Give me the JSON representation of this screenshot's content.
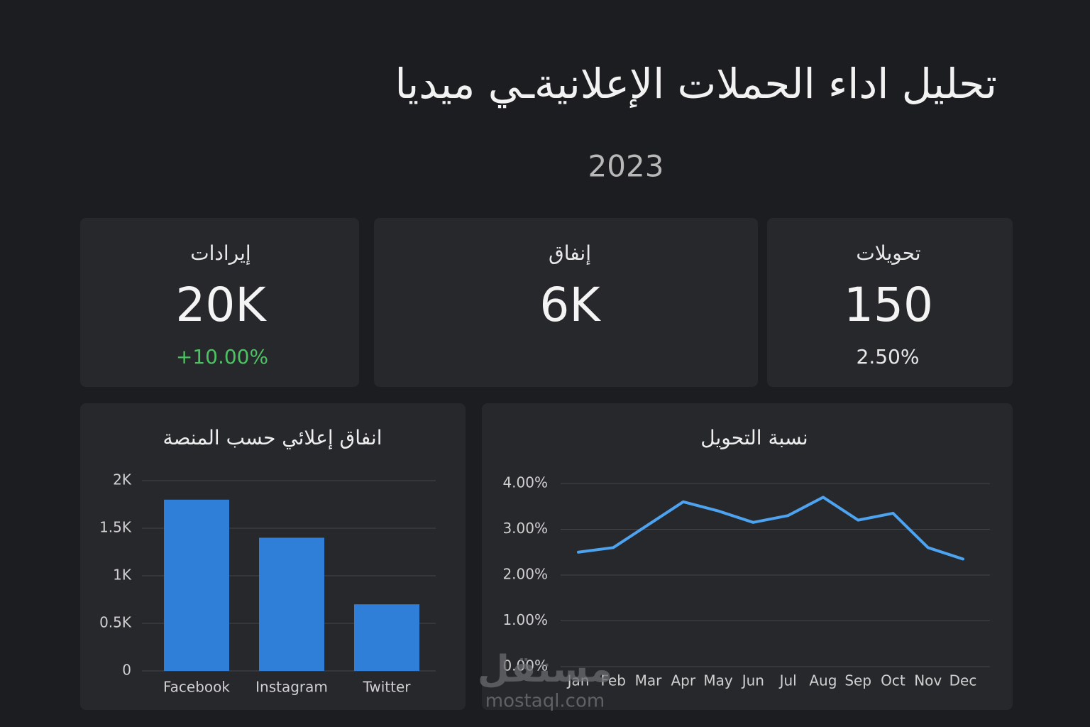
{
  "header": {
    "title": "تحليل اداء الحملات الإعلانيةـي ميديا",
    "subtitle": "2023"
  },
  "kpis": [
    {
      "label": "إيرادات",
      "value": "20K",
      "change": "+10.00%"
    },
    {
      "label": "إنفاق",
      "value": "6K"
    },
    {
      "label": "تحويلات",
      "value": "150",
      "change": "2.50%"
    }
  ],
  "chart_data": [
    {
      "type": "bar",
      "title": "انفاق إعلائي حسب المنصة",
      "categories": [
        "Facebook",
        "Instagram",
        "Twitter"
      ],
      "values": [
        1800,
        1400,
        700
      ],
      "color": "#2f7fd8",
      "ylim": [
        0,
        2000
      ],
      "yticks": [
        0,
        {
          "value": 500,
          "label": "0.5K"
        },
        {
          "value": 1000,
          "label": "1K"
        },
        {
          "value": 1500,
          "label": "1.5K"
        },
        {
          "value": 2000,
          "label": "2K"
        }
      ],
      "grid": true
    },
    {
      "type": "line",
      "title": "نسبة التحويل",
      "categories": [
        "Jan",
        "Feb",
        "Mar",
        "Apr",
        "May",
        "Jun",
        "Jul",
        "Aug",
        "Sep",
        "Oct",
        "Nov",
        "Dec"
      ],
      "values": [
        2.5,
        2.6,
        3.1,
        3.6,
        3.4,
        3.15,
        3.3,
        3.7,
        3.2,
        3.35,
        2.6,
        2.35
      ],
      "color": "#4ea3f0",
      "ylim": [
        0,
        4
      ],
      "yticks": [
        {
          "value": 0,
          "label": "0.00%"
        },
        {
          "value": 1,
          "label": "1.00%"
        },
        {
          "value": 2,
          "label": "2.00%"
        },
        {
          "value": 3,
          "label": "3.00%"
        },
        {
          "value": 4,
          "label": "4.00%"
        }
      ],
      "grid": true
    }
  ],
  "watermark": {
    "logo": "مستقل",
    "url": "mostaql.com"
  }
}
